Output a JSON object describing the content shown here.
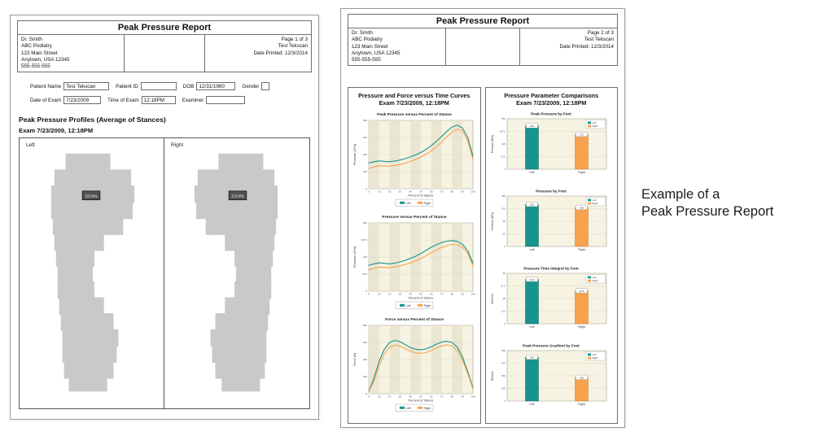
{
  "shared": {
    "report_title": "Peak Pressure Report",
    "practice": [
      "Dr. Smith",
      "ABC Podiatry",
      "123 Main Street",
      "Anytown, USA 12345",
      "555-555-555"
    ],
    "patient_line": "Test  Tekscan",
    "printed_line": "Date Printed: 12/3/2014"
  },
  "page1": {
    "page_label": "Page 1 of 3",
    "fields": {
      "patient_name_label": "Patient Name",
      "patient_name_value": "Test  Tekscan",
      "patient_id_label": "Patient ID",
      "patient_id_value": "",
      "dob_label": "DOB",
      "dob_value": "12/31/1960",
      "gender_label": "Gender",
      "gender_value": "",
      "date_of_exam_label": "Date of Exam",
      "date_of_exam_value": "7/23/2009",
      "time_of_exam_label": "Time of Exam",
      "time_of_exam_value": "12:18PM",
      "examiner_label": "Examiner",
      "examiner_value": ""
    },
    "section_title": "Peak Pressure Profiles (Average of Stances)",
    "exam_line": "Exam 7/23/2009, 12:18PM",
    "left_foot_label": "Left",
    "right_foot_label": "Right",
    "left_peak_label": "215 kPa",
    "right_peak_label": "172 kPa"
  },
  "page2": {
    "page_label": "Page 2 of 3",
    "left_column": {
      "title": "Pressure and Force versus Time Curves",
      "subtitle": "Exam 7/23/2009, 12:18PM"
    },
    "right_column": {
      "title": "Pressure Parameter Comparisons",
      "subtitle": "Exam 7/23/2009, 12:18PM"
    }
  },
  "caption": {
    "line1": "Example of a",
    "line2": "Peak Pressure Report"
  },
  "colors": {
    "left_series": "#17948c",
    "left_series_dark": "#0d6b66",
    "right_series": "#f6a24f",
    "right_series_dark": "#c97f2e",
    "plot_bg": "#f6f3e2",
    "plot_stripe": "#eae6d2"
  },
  "chart_data": [
    {
      "type": "line",
      "title": "Peak Pressure versus Percent of Stance",
      "xlabel": "Percent of Stance",
      "ylabel": "Pressure (KPa)",
      "ylim": [
        0,
        400
      ],
      "legend_position": "bottom",
      "grid": true,
      "x": [
        0,
        5,
        10,
        15,
        20,
        25,
        30,
        35,
        40,
        45,
        50,
        55,
        60,
        65,
        70,
        75,
        80,
        85,
        90,
        95,
        100
      ],
      "series": [
        {
          "name": "Left",
          "values": [
            150,
            158,
            163,
            160,
            158,
            162,
            168,
            176,
            186,
            198,
            212,
            230,
            252,
            278,
            306,
            336,
            362,
            372,
            355,
            300,
            190
          ]
        },
        {
          "name": "Right",
          "values": [
            118,
            128,
            135,
            133,
            132,
            136,
            142,
            150,
            160,
            172,
            186,
            202,
            222,
            246,
            274,
            304,
            332,
            348,
            338,
            282,
            172
          ]
        }
      ]
    },
    {
      "type": "line",
      "title": "Pressure versus Percent of Stance",
      "xlabel": "Percent of Stance",
      "ylabel": "Pressure (KPa)",
      "ylim": [
        0,
        250
      ],
      "legend_position": "bottom",
      "grid": true,
      "x": [
        0,
        5,
        10,
        15,
        20,
        25,
        30,
        35,
        40,
        45,
        50,
        55,
        60,
        65,
        70,
        75,
        80,
        85,
        90,
        95,
        100
      ],
      "series": [
        {
          "name": "Left",
          "values": [
            95,
            100,
            104,
            102,
            100,
            103,
            107,
            113,
            120,
            128,
            138,
            149,
            161,
            170,
            178,
            183,
            185,
            182,
            172,
            148,
            102
          ]
        },
        {
          "name": "Right",
          "values": [
            78,
            84,
            88,
            87,
            86,
            89,
            93,
            98,
            104,
            111,
            120,
            130,
            141,
            151,
            160,
            167,
            171,
            170,
            162,
            138,
            92
          ]
        }
      ]
    },
    {
      "type": "line",
      "title": "Force versus Percent of Stance",
      "xlabel": "Percent of Stance",
      "ylabel": "Force (N)",
      "ylim": [
        0,
        800
      ],
      "legend_position": "bottom",
      "grid": true,
      "x": [
        0,
        5,
        10,
        15,
        20,
        25,
        30,
        35,
        40,
        45,
        50,
        55,
        60,
        65,
        70,
        75,
        80,
        85,
        90,
        95,
        100
      ],
      "series": [
        {
          "name": "Left",
          "values": [
            30,
            180,
            380,
            520,
            600,
            625,
            610,
            575,
            540,
            520,
            515,
            525,
            550,
            580,
            605,
            615,
            600,
            545,
            430,
            260,
            70
          ]
        },
        {
          "name": "Right",
          "values": [
            22,
            150,
            330,
            465,
            545,
            570,
            558,
            528,
            498,
            478,
            472,
            482,
            505,
            535,
            560,
            572,
            558,
            505,
            395,
            235,
            55
          ]
        }
      ]
    },
    {
      "type": "bar",
      "title": "Peak Pressure by Foot",
      "ylabel": "Pressure (KPa)",
      "ylim": [
        0,
        250
      ],
      "categories": [
        "Left",
        "Right"
      ],
      "values": [
        215,
        172
      ],
      "legend_position": "top-right",
      "grid": true
    },
    {
      "type": "bar",
      "title": "Pressure by Foot",
      "ylabel": "Pressure (KPa)",
      "ylim": [
        0,
        180
      ],
      "categories": [
        "Left",
        "Right"
      ],
      "values": [
        150,
        139
      ],
      "legend_position": "top-right",
      "grid": true
    },
    {
      "type": "bar",
      "title": "Pressure Time Integral by Foot",
      "ylabel": "KPa*sec",
      "ylim": [
        0,
        50
      ],
      "categories": [
        "Left",
        "Right"
      ],
      "values": [
        43.9,
        32.6
      ],
      "legend_position": "top-right",
      "grid": true
    },
    {
      "type": "bar",
      "title": "Peak Pressure Gradient by Foot",
      "ylabel": "KPa/sec",
      "ylim": [
        0,
        900
      ],
      "categories": [
        "Left",
        "Right"
      ],
      "values": [
        780,
        420
      ],
      "legend_position": "top-right",
      "grid": true
    }
  ]
}
